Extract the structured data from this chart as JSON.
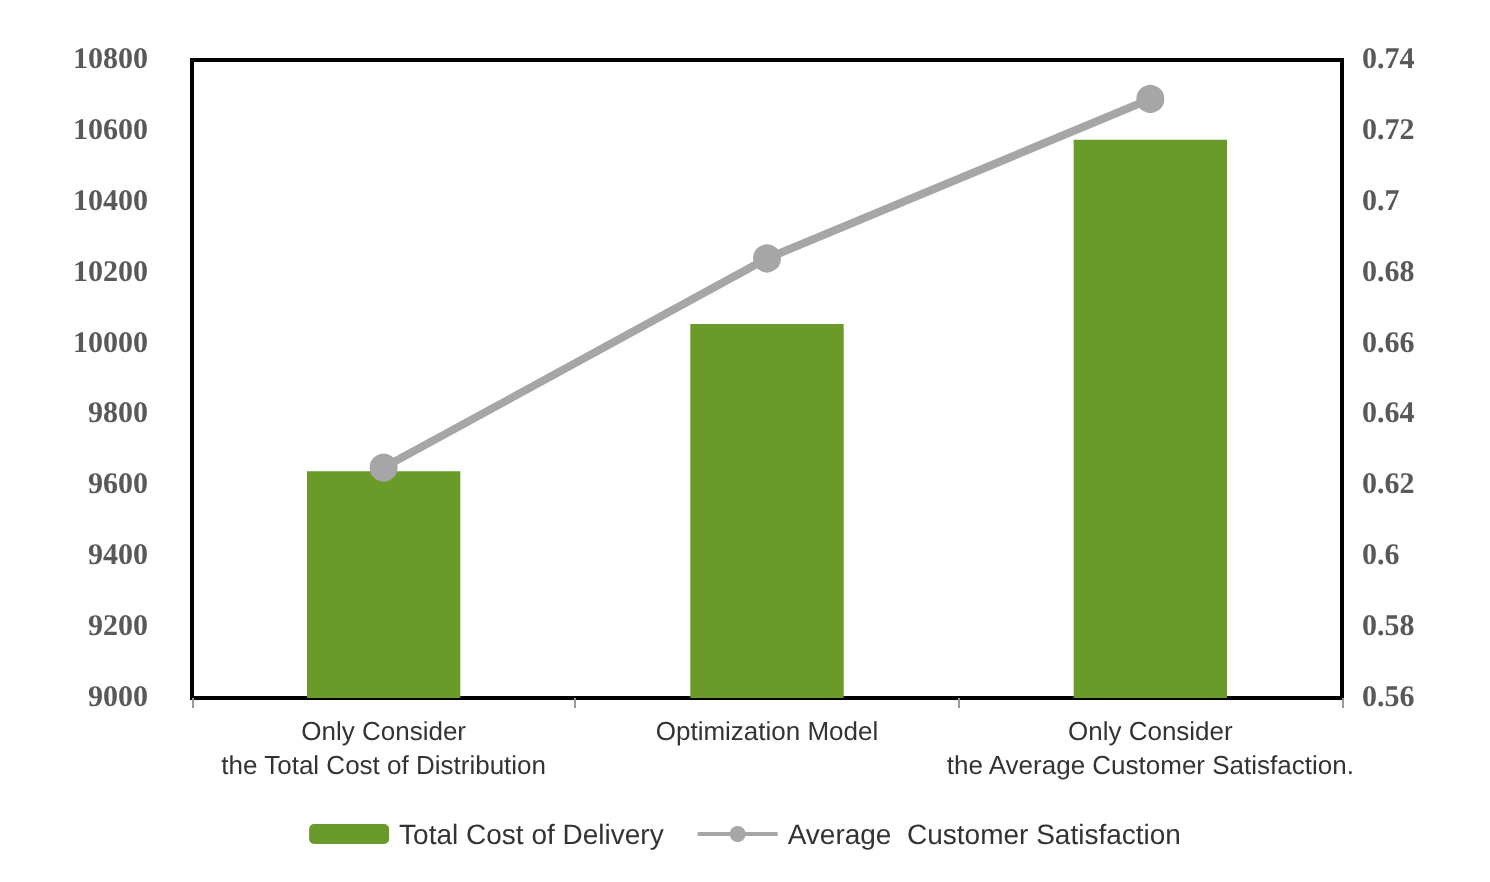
{
  "chart_data": {
    "type": "bar",
    "categories": [
      "Only Consider\nthe Total Cost of Distribution",
      "Optimization Model",
      "Only Consider\nthe Average Customer Satisfaction."
    ],
    "series": [
      {
        "name": "Total Cost of Delivery",
        "color": "#6a9a2a",
        "values": [
          9640,
          10055,
          10575
        ]
      },
      {
        "name": "Average  Customer Satisfaction",
        "type": "line",
        "axis": "y2",
        "color": "#a6a6a6",
        "marker": "circle",
        "values": [
          0.625,
          0.684,
          0.729
        ]
      }
    ],
    "ylim": [
      9000,
      10800
    ],
    "yticks": [
      9000,
      9200,
      9400,
      9600,
      9800,
      10000,
      10200,
      10400,
      10600,
      10800
    ],
    "y2lim": [
      0.56,
      0.74
    ],
    "y2ticks": [
      0.56,
      0.58,
      0.6,
      0.62,
      0.64,
      0.66,
      0.68,
      0.7,
      0.72,
      0.74
    ],
    "grid": false,
    "legend": "bottom"
  }
}
